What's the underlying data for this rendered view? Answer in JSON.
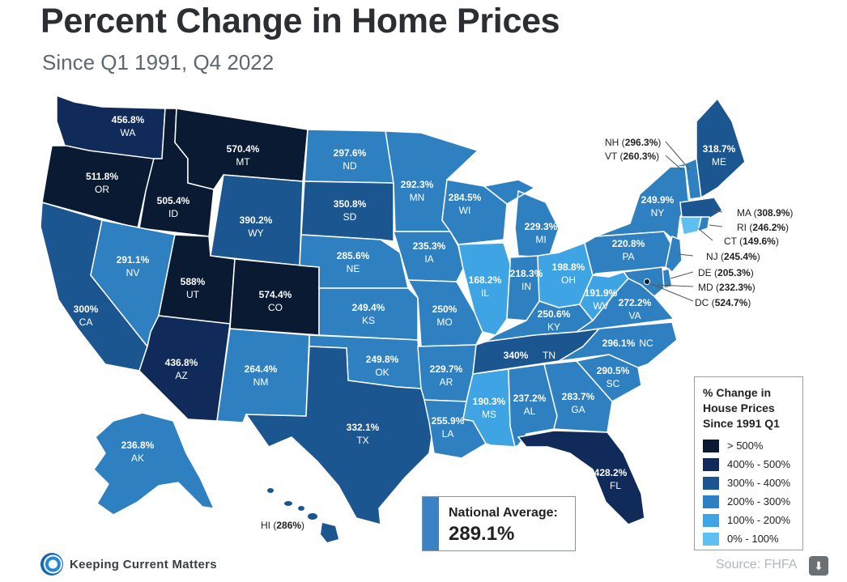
{
  "title": "Percent Change in Home Prices",
  "subtitle": "Since Q1 1991, Q4 2022",
  "colors": {
    "gt500": "#0a1a33",
    "r400_500": "#102b5a",
    "r300_400": "#1c5691",
    "r200_300": "#2f80c0",
    "r100_200": "#3fa4e4",
    "r0_100": "#5ec0f0"
  },
  "legend": {
    "title": "% Change in House Prices Since 1991 Q1",
    "items": [
      "> 500%",
      "400% - 500%",
      "300% - 400%",
      "200% - 300%",
      "100% - 200%",
      "0% - 100%"
    ]
  },
  "national": {
    "label": "National Average:",
    "value": "289.1%"
  },
  "brand": "Keeping Current Matters",
  "source": "Source: FHFA",
  "states": {
    "WA": {
      "name": "WA",
      "value": "456.8%"
    },
    "OR": {
      "name": "OR",
      "value": "511.8%"
    },
    "CA": {
      "name": "CA",
      "value": "300%"
    },
    "ID": {
      "name": "ID",
      "value": "505.4%"
    },
    "NV": {
      "name": "NV",
      "value": "291.1%"
    },
    "MT": {
      "name": "MT",
      "value": "570.4%"
    },
    "WY": {
      "name": "WY",
      "value": "390.2%"
    },
    "UT": {
      "name": "UT",
      "value": "588%"
    },
    "CO": {
      "name": "CO",
      "value": "574.4%"
    },
    "AZ": {
      "name": "AZ",
      "value": "436.8%"
    },
    "NM": {
      "name": "NM",
      "value": "264.4%"
    },
    "ND": {
      "name": "ND",
      "value": "297.6%"
    },
    "SD": {
      "name": "SD",
      "value": "350.8%"
    },
    "NE": {
      "name": "NE",
      "value": "285.6%"
    },
    "KS": {
      "name": "KS",
      "value": "249.4%"
    },
    "OK": {
      "name": "OK",
      "value": "249.8%"
    },
    "TX": {
      "name": "TX",
      "value": "332.1%"
    },
    "MN": {
      "name": "MN",
      "value": "292.3%"
    },
    "IA": {
      "name": "IA",
      "value": "235.3%"
    },
    "MO": {
      "name": "MO",
      "value": "250%"
    },
    "AR": {
      "name": "AR",
      "value": "229.7%"
    },
    "LA": {
      "name": "LA",
      "value": "255.9%"
    },
    "WI": {
      "name": "WI",
      "value": "284.5%"
    },
    "IL": {
      "name": "IL",
      "value": "168.2%"
    },
    "MI": {
      "name": "MI",
      "value": "229.3%"
    },
    "IN": {
      "name": "IN",
      "value": "218.3%"
    },
    "OH": {
      "name": "OH",
      "value": "198.8%"
    },
    "KY": {
      "name": "KY",
      "value": "250.6%"
    },
    "TN": {
      "name": "TN",
      "value": "340%"
    },
    "MS": {
      "name": "MS",
      "value": "190.3%"
    },
    "AL": {
      "name": "AL",
      "value": "237.2%"
    },
    "GA": {
      "name": "GA",
      "value": "283.7%"
    },
    "FL": {
      "name": "FL",
      "value": "428.2%"
    },
    "SC": {
      "name": "SC",
      "value": "290.5%"
    },
    "NC": {
      "name": "NC",
      "value": "296.1%"
    },
    "VA": {
      "name": "VA",
      "value": "272.2%"
    },
    "WV": {
      "name": "WV",
      "value": "191.9%"
    },
    "PA": {
      "name": "PA",
      "value": "220.8%"
    },
    "NY": {
      "name": "NY",
      "value": "249.9%"
    },
    "ME": {
      "name": "ME",
      "value": "318.7%"
    },
    "AK": {
      "name": "AK",
      "value": "236.8%"
    },
    "NH": {
      "name": "NH",
      "value": "296.3%"
    },
    "VT": {
      "name": "VT",
      "value": "260.3%"
    },
    "MA": {
      "name": "MA",
      "value": "308.9%"
    },
    "RI": {
      "name": "RI",
      "value": "246.2%"
    },
    "CT": {
      "name": "CT",
      "value": "149.6%"
    },
    "NJ": {
      "name": "NJ",
      "value": "245.4%"
    },
    "DE": {
      "name": "DE",
      "value": "205.3%"
    },
    "MD": {
      "name": "MD",
      "value": "232.3%"
    },
    "DC": {
      "name": "DC",
      "value": "524.7%"
    },
    "HI": {
      "name": "HI",
      "value": "286%"
    }
  }
}
